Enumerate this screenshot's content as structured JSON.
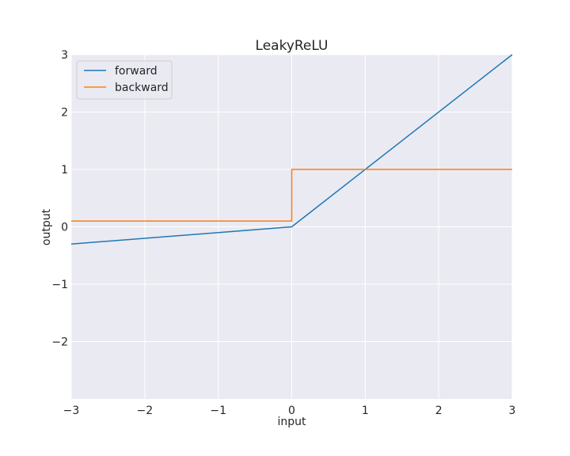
{
  "chart_data": {
    "type": "line",
    "title": "LeakyReLU",
    "xlabel": "input",
    "ylabel": "output",
    "xlim": [
      -3,
      3
    ],
    "ylim": [
      -3,
      3
    ],
    "xticks": [
      -3,
      -2,
      -1,
      0,
      1,
      2,
      3
    ],
    "yticks": [
      -2,
      -1,
      0,
      1,
      2,
      3
    ],
    "xtick_labels": [
      "−3",
      "−2",
      "−1",
      "0",
      "1",
      "2",
      "3"
    ],
    "ytick_labels": [
      "−2",
      "−1",
      "0",
      "1",
      "2",
      "3"
    ],
    "grid": true,
    "legend_position": "top-left",
    "background": "#eaeaf2",
    "series": [
      {
        "name": "forward",
        "color": "#1f77b4",
        "x": [
          -3,
          0,
          0.05,
          3
        ],
        "y": [
          -0.3,
          0,
          0.05,
          3
        ]
      },
      {
        "name": "backward",
        "color": "#ff7f0e",
        "x": [
          -3,
          0,
          0,
          3
        ],
        "y": [
          0.1,
          0.1,
          1,
          1
        ]
      }
    ]
  }
}
